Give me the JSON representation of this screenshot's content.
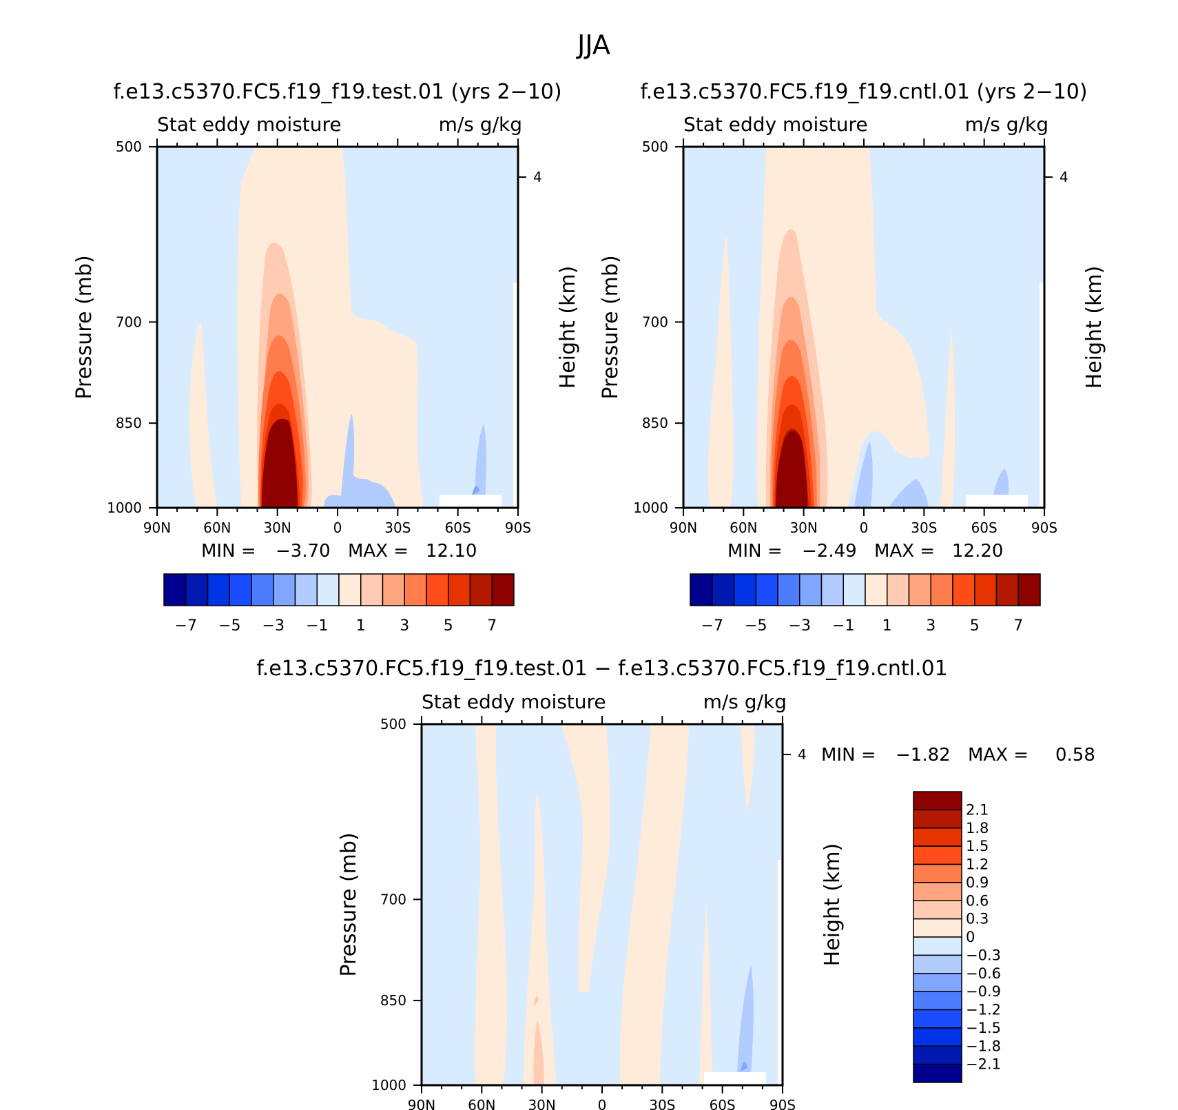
{
  "figure": {
    "title": "JJA"
  },
  "colors": {
    "main_scale": [
      "#00008f",
      "#0019b3",
      "#0033e6",
      "#1a4dff",
      "#4d7dff",
      "#80a6ff",
      "#b3ccff",
      "#d9ebff",
      "#ffebd9",
      "#ffccb3",
      "#ffa680",
      "#ff7d4d",
      "#ff4d1a",
      "#e63300",
      "#b31900",
      "#8f0000"
    ],
    "diff_scale": [
      "#8f0000",
      "#b31900",
      "#e63300",
      "#ff4d1a",
      "#ff7d4d",
      "#ffa680",
      "#ffccb3",
      "#ffebd9",
      "#d9ebff",
      "#b3ccff",
      "#80a6ff",
      "#4d7dff",
      "#1a4dff",
      "#0033e6",
      "#0019b3",
      "#00008f"
    ]
  },
  "chart_data": [
    {
      "type": "heatmap",
      "panel": "test",
      "title": "f.e13.c5370.FC5.f19_f19.test.01 (yrs 2−10)",
      "subtitle_left": "Stat eddy moisture",
      "subtitle_right": "m/s g/kg",
      "ylabel": "Pressure (mb)",
      "ylabel_right": "Height (km)",
      "x_ticks": [
        "90N",
        "60N",
        "30N",
        "0",
        "30S",
        "60S",
        "90S"
      ],
      "x_range": [
        90,
        -90
      ],
      "y_ticks": [
        500,
        700,
        850,
        1000
      ],
      "y_range": [
        500,
        1000
      ],
      "y_right_ticks": [
        4
      ],
      "min_label": "MIN =",
      "min": "−3.70",
      "max_label": "MAX =",
      "max": "12.10",
      "colorbar_labels": [
        "−7",
        "−5",
        "−3",
        "−1",
        "1",
        "3",
        "5",
        "7"
      ],
      "contour_interval": 1,
      "features": [
        {
          "lat": 32,
          "p": 935,
          "value": 12.1,
          "note": "peak"
        }
      ]
    },
    {
      "type": "heatmap",
      "panel": "cntl",
      "title": "f.e13.c5370.FC5.f19_f19.cntl.01 (yrs 2−10)",
      "subtitle_left": "Stat eddy moisture",
      "subtitle_right": "m/s g/kg",
      "ylabel": "Pressure (mb)",
      "ylabel_right": "Height (km)",
      "x_ticks": [
        "90N",
        "60N",
        "30N",
        "0",
        "30S",
        "60S",
        "90S"
      ],
      "x_range": [
        90,
        -90
      ],
      "y_ticks": [
        500,
        700,
        850,
        1000
      ],
      "y_range": [
        500,
        1000
      ],
      "y_right_ticks": [
        4
      ],
      "min_label": "MIN =",
      "min": "−2.49",
      "max_label": "MAX =",
      "max": "12.20",
      "colorbar_labels": [
        "−7",
        "−5",
        "−3",
        "−1",
        "1",
        "3",
        "5",
        "7"
      ],
      "contour_interval": 1,
      "features": [
        {
          "lat": 30,
          "p": 930,
          "value": 12.2,
          "note": "peak"
        }
      ]
    },
    {
      "type": "heatmap",
      "panel": "diff",
      "title": "f.e13.c5370.FC5.f19_f19.test.01 − f.e13.c5370.FC5.f19_f19.cntl.01",
      "subtitle_left": "Stat eddy moisture",
      "subtitle_right": "m/s g/kg",
      "ylabel": "Pressure (mb)",
      "ylabel_right": "Height (km)",
      "x_ticks": [
        "90N",
        "60N",
        "30N",
        "0",
        "30S",
        "60S",
        "90S"
      ],
      "x_range": [
        90,
        -90
      ],
      "y_ticks": [
        500,
        700,
        850,
        1000
      ],
      "y_range": [
        500,
        1000
      ],
      "y_right_ticks": [
        4
      ],
      "min_label": "MIN =",
      "min": "−1.82",
      "max_label": "MAX =",
      "max": "0.58",
      "colorbar_labels": [
        "2.1",
        "1.8",
        "1.5",
        "1.2",
        "0.9",
        "0.6",
        "0.3",
        "0",
        "−0.3",
        "−0.6",
        "−0.9",
        "−1.2",
        "−1.5",
        "−1.8",
        "−2.1"
      ],
      "contour_interval": 0.3
    }
  ]
}
